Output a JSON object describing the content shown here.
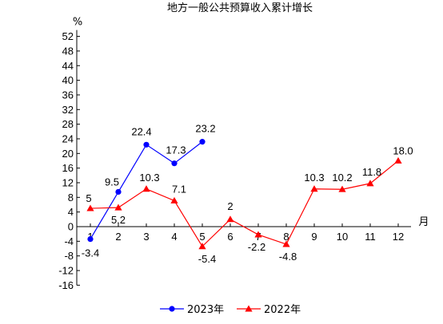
{
  "chart_data": {
    "type": "line",
    "title": "地方一般公共预算收入累计增长",
    "ylabel": "%",
    "xlabel": "月",
    "ylim": [
      -16,
      52
    ],
    "yticks": [
      -16,
      -12,
      -8,
      -4,
      0,
      4,
      8,
      12,
      16,
      20,
      24,
      28,
      32,
      36,
      40,
      44,
      48,
      52
    ],
    "categories": [
      "1",
      "2",
      "3",
      "4",
      "5",
      "6",
      "7",
      "8",
      "9",
      "10",
      "11",
      "12"
    ],
    "series": [
      {
        "name": "2023年",
        "color": "#0000ff",
        "marker": "circle",
        "values": [
          -3.4,
          9.5,
          22.4,
          17.3,
          23.2,
          null,
          null,
          null,
          null,
          null,
          null,
          null
        ],
        "labels": [
          "-3.4",
          "9.5",
          "22.4",
          "17.3",
          "23.2",
          null,
          null,
          null,
          null,
          null,
          null,
          null
        ]
      },
      {
        "name": "2022年",
        "color": "#ff0000",
        "marker": "triangle",
        "values": [
          5,
          5.2,
          10.3,
          7.1,
          -5.4,
          2,
          -2.2,
          -4.8,
          10.3,
          10.2,
          11.8,
          18.0
        ],
        "labels": [
          "5",
          "5.2",
          "10.3",
          "7.1",
          "-5.4",
          "2",
          "-2.2",
          "-4.8",
          "10.3",
          "10.2",
          "11.8",
          "18.0"
        ]
      }
    ],
    "legend": "bottom",
    "grid": false
  }
}
